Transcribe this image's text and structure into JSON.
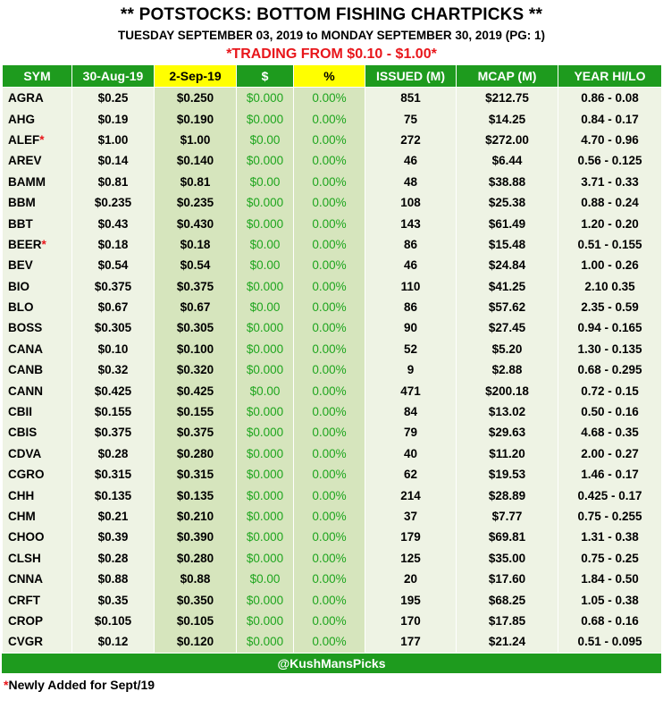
{
  "header": {
    "title": "** POTSTOCKS: BOTTOM FISHING CHARTPICKS **",
    "subtitle": "TUESDAY SEPTEMBER 03, 2019 to MONDAY SEPTEMBER 30, 2019 (PG: 1)",
    "range": "*TRADING FROM $0.10 - $1.00*"
  },
  "columns": [
    "SYM",
    "30-Aug-19",
    "2-Sep-19",
    "$",
    "%",
    "ISSUED (M)",
    "MCAP (M)",
    "YEAR HI/LO"
  ],
  "rows": [
    {
      "sym": "AGRA",
      "star": "",
      "p1": "$0.25",
      "p2": "$0.250",
      "chg": "$0.000",
      "pct": "0.00%",
      "issued": "851",
      "mcap": "$212.75",
      "hilo": "0.86 - 0.08"
    },
    {
      "sym": "AHG",
      "star": "",
      "p1": "$0.19",
      "p2": "$0.190",
      "chg": "$0.000",
      "pct": "0.00%",
      "issued": "75",
      "mcap": "$14.25",
      "hilo": "0.84 - 0.17"
    },
    {
      "sym": "ALEF",
      "star": "*",
      "p1": "$1.00",
      "p2": "$1.00",
      "chg": "$0.00",
      "pct": "0.00%",
      "issued": "272",
      "mcap": "$272.00",
      "hilo": "4.70 - 0.96"
    },
    {
      "sym": "AREV",
      "star": "",
      "p1": "$0.14",
      "p2": "$0.140",
      "chg": "$0.000",
      "pct": "0.00%",
      "issued": "46",
      "mcap": "$6.44",
      "hilo": "0.56 - 0.125"
    },
    {
      "sym": "BAMM",
      "star": "",
      "p1": "$0.81",
      "p2": "$0.81",
      "chg": "$0.00",
      "pct": "0.00%",
      "issued": "48",
      "mcap": "$38.88",
      "hilo": "3.71 - 0.33"
    },
    {
      "sym": "BBM",
      "star": "",
      "p1": "$0.235",
      "p2": "$0.235",
      "chg": "$0.000",
      "pct": "0.00%",
      "issued": "108",
      "mcap": "$25.38",
      "hilo": "0.88 - 0.24"
    },
    {
      "sym": "BBT",
      "star": "",
      "p1": "$0.43",
      "p2": "$0.430",
      "chg": "$0.000",
      "pct": "0.00%",
      "issued": "143",
      "mcap": "$61.49",
      "hilo": "1.20 - 0.20"
    },
    {
      "sym": "BEER",
      "star": "*",
      "p1": "$0.18",
      "p2": "$0.18",
      "chg": "$0.00",
      "pct": "0.00%",
      "issued": "86",
      "mcap": "$15.48",
      "hilo": "0.51 - 0.155"
    },
    {
      "sym": "BEV",
      "star": "",
      "p1": "$0.54",
      "p2": "$0.54",
      "chg": "$0.00",
      "pct": "0.00%",
      "issued": "46",
      "mcap": "$24.84",
      "hilo": "1.00 - 0.26"
    },
    {
      "sym": "BIO",
      "star": "",
      "p1": "$0.375",
      "p2": "$0.375",
      "chg": "$0.000",
      "pct": "0.00%",
      "issued": "110",
      "mcap": "$41.25",
      "hilo": "2.10  0.35"
    },
    {
      "sym": "BLO",
      "star": "",
      "p1": "$0.67",
      "p2": "$0.67",
      "chg": "$0.00",
      "pct": "0.00%",
      "issued": "86",
      "mcap": "$57.62",
      "hilo": "2.35 - 0.59"
    },
    {
      "sym": "BOSS",
      "star": "",
      "p1": "$0.305",
      "p2": "$0.305",
      "chg": "$0.000",
      "pct": "0.00%",
      "issued": "90",
      "mcap": "$27.45",
      "hilo": "0.94 - 0.165"
    },
    {
      "sym": "CANA",
      "star": "",
      "p1": "$0.10",
      "p2": "$0.100",
      "chg": "$0.000",
      "pct": "0.00%",
      "issued": "52",
      "mcap": "$5.20",
      "hilo": "1.30 - 0.135"
    },
    {
      "sym": "CANB",
      "star": "",
      "p1": "$0.32",
      "p2": "$0.320",
      "chg": "$0.000",
      "pct": "0.00%",
      "issued": "9",
      "mcap": "$2.88",
      "hilo": "0.68 - 0.295"
    },
    {
      "sym": "CANN",
      "star": "",
      "p1": "$0.425",
      "p2": "$0.425",
      "chg": "$0.00",
      "pct": "0.00%",
      "issued": "471",
      "mcap": "$200.18",
      "hilo": "0.72 - 0.15"
    },
    {
      "sym": "CBII",
      "star": "",
      "p1": "$0.155",
      "p2": "$0.155",
      "chg": "$0.000",
      "pct": "0.00%",
      "issued": "84",
      "mcap": "$13.02",
      "hilo": "0.50 - 0.16"
    },
    {
      "sym": "CBIS",
      "star": "",
      "p1": "$0.375",
      "p2": "$0.375",
      "chg": "$0.000",
      "pct": "0.00%",
      "issued": "79",
      "mcap": "$29.63",
      "hilo": "4.68 - 0.35"
    },
    {
      "sym": "CDVA",
      "star": "",
      "p1": "$0.28",
      "p2": "$0.280",
      "chg": "$0.000",
      "pct": "0.00%",
      "issued": "40",
      "mcap": "$11.20",
      "hilo": "2.00 - 0.27"
    },
    {
      "sym": "CGRO",
      "star": "",
      "p1": "$0.315",
      "p2": "$0.315",
      "chg": "$0.000",
      "pct": "0.00%",
      "issued": "62",
      "mcap": "$19.53",
      "hilo": "1.46 - 0.17"
    },
    {
      "sym": "CHH",
      "star": "",
      "p1": "$0.135",
      "p2": "$0.135",
      "chg": "$0.000",
      "pct": "0.00%",
      "issued": "214",
      "mcap": "$28.89",
      "hilo": "0.425 - 0.17"
    },
    {
      "sym": "CHM",
      "star": "",
      "p1": "$0.21",
      "p2": "$0.210",
      "chg": "$0.000",
      "pct": "0.00%",
      "issued": "37",
      "mcap": "$7.77",
      "hilo": "0.75 - 0.255"
    },
    {
      "sym": "CHOO",
      "star": "",
      "p1": "$0.39",
      "p2": "$0.390",
      "chg": "$0.000",
      "pct": "0.00%",
      "issued": "179",
      "mcap": "$69.81",
      "hilo": "1.31 - 0.38"
    },
    {
      "sym": "CLSH",
      "star": "",
      "p1": "$0.28",
      "p2": "$0.280",
      "chg": "$0.000",
      "pct": "0.00%",
      "issued": "125",
      "mcap": "$35.00",
      "hilo": "0.75 - 0.25"
    },
    {
      "sym": "CNNA",
      "star": "",
      "p1": "$0.88",
      "p2": "$0.88",
      "chg": "$0.00",
      "pct": "0.00%",
      "issued": "20",
      "mcap": "$17.60",
      "hilo": "1.84 - 0.50"
    },
    {
      "sym": "CRFT",
      "star": "",
      "p1": "$0.35",
      "p2": "$0.350",
      "chg": "$0.000",
      "pct": "0.00%",
      "issued": "195",
      "mcap": "$68.25",
      "hilo": "1.05 - 0.38"
    },
    {
      "sym": "CROP",
      "star": "",
      "p1": "$0.105",
      "p2": "$0.105",
      "chg": "$0.000",
      "pct": "0.00%",
      "issued": "170",
      "mcap": "$17.85",
      "hilo": "0.68 - 0.16"
    },
    {
      "sym": "CVGR",
      "star": "",
      "p1": "$0.12",
      "p2": "$0.120",
      "chg": "$0.000",
      "pct": "0.00%",
      "issued": "177",
      "mcap": "$21.24",
      "hilo": "0.51 - 0.095"
    }
  ],
  "footer": {
    "handle": "@KushMansPicks",
    "note_star": "*",
    "note_text": "Newly Added for Sept/19"
  },
  "colors": {
    "header_green": "#1e9b1e",
    "highlight_yellow": "#ffff00",
    "accent_red": "#e8161b",
    "change_green": "#1ea51e"
  }
}
